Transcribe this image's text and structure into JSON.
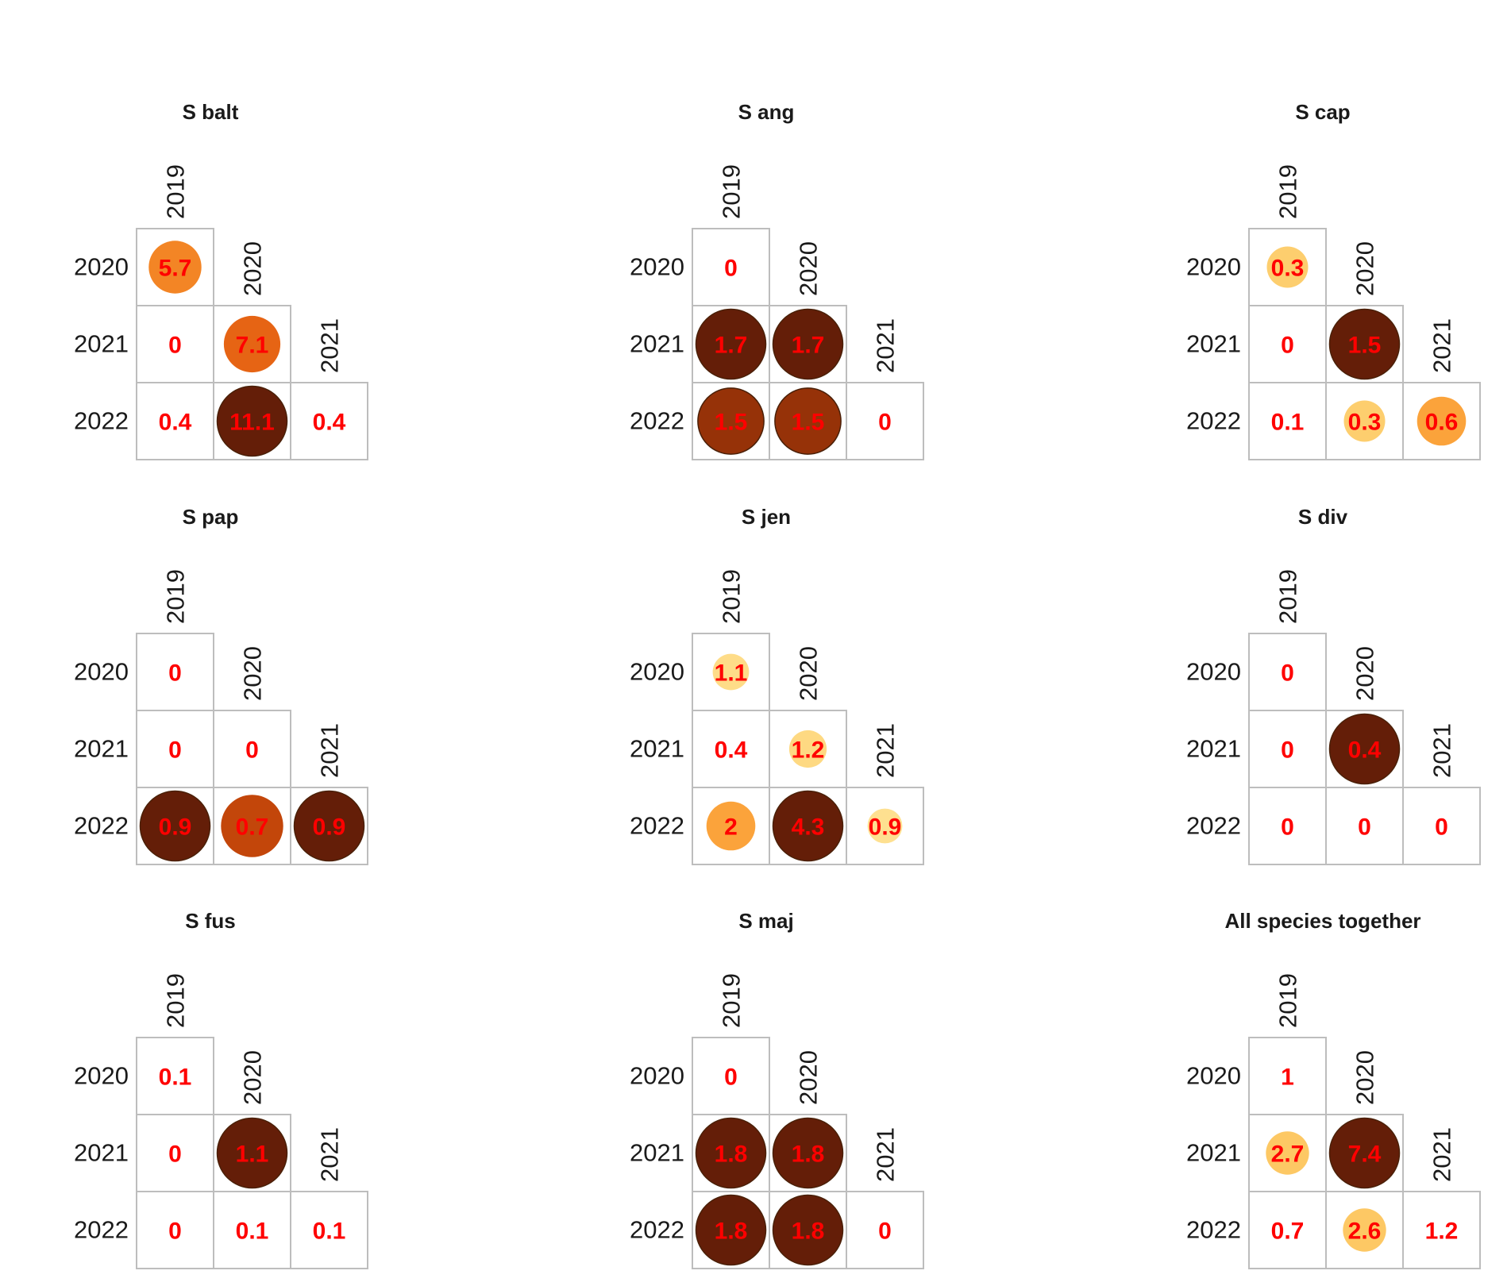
{
  "chart_data": [
    {
      "type": "heatmap",
      "title": "S balt",
      "rows": [
        "2020",
        "2021",
        "2022"
      ],
      "columns": [
        "2019",
        "2020",
        "2021"
      ],
      "values": [
        [
          5.7
        ],
        [
          0,
          7.1
        ],
        [
          0.4,
          11.1,
          0.4
        ]
      ],
      "circle_fill": [
        [
          0.55
        ],
        [
          null,
          0.65
        ],
        [
          null,
          1.0,
          null
        ]
      ]
    },
    {
      "type": "heatmap",
      "title": "S ang",
      "rows": [
        "2020",
        "2021",
        "2022"
      ],
      "columns": [
        "2019",
        "2020",
        "2021"
      ],
      "values": [
        [
          0
        ],
        [
          1.7,
          1.7
        ],
        [
          1.5,
          1.5,
          0
        ]
      ],
      "circle_fill": [
        [
          null
        ],
        [
          1.0,
          1.0
        ],
        [
          0.9,
          0.9,
          null
        ]
      ]
    },
    {
      "type": "heatmap",
      "title": "S cap",
      "rows": [
        "2020",
        "2021",
        "2022"
      ],
      "columns": [
        "2019",
        "2020",
        "2021"
      ],
      "values": [
        [
          0.3
        ],
        [
          0,
          1.5
        ],
        [
          0.1,
          0.3,
          0.6
        ]
      ],
      "circle_fill": [
        [
          0.25
        ],
        [
          null,
          1.0
        ],
        [
          null,
          0.25,
          0.45
        ]
      ]
    },
    {
      "type": "heatmap",
      "title": "S pap",
      "rows": [
        "2020",
        "2021",
        "2022"
      ],
      "columns": [
        "2019",
        "2020",
        "2021"
      ],
      "values": [
        [
          0
        ],
        [
          0,
          0
        ],
        [
          0.9,
          0.7,
          0.9
        ]
      ],
      "circle_fill": [
        [
          null
        ],
        [
          null,
          null
        ],
        [
          1.0,
          0.8,
          1.0
        ]
      ]
    },
    {
      "type": "heatmap",
      "title": "S jen",
      "rows": [
        "2020",
        "2021",
        "2022"
      ],
      "columns": [
        "2019",
        "2020",
        "2021"
      ],
      "values": [
        [
          1.1
        ],
        [
          0.4,
          1.2
        ],
        [
          2,
          4.3,
          0.9
        ]
      ],
      "circle_fill": [
        [
          0.12
        ],
        [
          null,
          0.15
        ],
        [
          0.45,
          1.0,
          0.08
        ]
      ]
    },
    {
      "type": "heatmap",
      "title": "S div",
      "rows": [
        "2020",
        "2021",
        "2022"
      ],
      "columns": [
        "2019",
        "2020",
        "2021"
      ],
      "values": [
        [
          0
        ],
        [
          0,
          0.4
        ],
        [
          0,
          0,
          0
        ]
      ],
      "circle_fill": [
        [
          null
        ],
        [
          null,
          1.0
        ],
        [
          null,
          null,
          null
        ]
      ]
    },
    {
      "type": "heatmap",
      "title": "S fus",
      "rows": [
        "2020",
        "2021",
        "2022"
      ],
      "columns": [
        "2019",
        "2020",
        "2021"
      ],
      "values": [
        [
          0.1
        ],
        [
          0,
          1.1
        ],
        [
          0,
          0.1,
          0.1
        ]
      ],
      "circle_fill": [
        [
          null
        ],
        [
          null,
          1.0
        ],
        [
          null,
          null,
          null
        ]
      ]
    },
    {
      "type": "heatmap",
      "title": "S maj",
      "rows": [
        "2020",
        "2021",
        "2022"
      ],
      "columns": [
        "2019",
        "2020",
        "2021"
      ],
      "values": [
        [
          0
        ],
        [
          1.8,
          1.8
        ],
        [
          1.8,
          1.8,
          0
        ]
      ],
      "circle_fill": [
        [
          null
        ],
        [
          1.0,
          1.0
        ],
        [
          1.0,
          1.0,
          null
        ]
      ]
    },
    {
      "type": "heatmap",
      "title": "All species together",
      "rows": [
        "2020",
        "2021",
        "2022"
      ],
      "columns": [
        "2019",
        "2020",
        "2021"
      ],
      "values": [
        [
          1
        ],
        [
          2.7,
          7.4
        ],
        [
          0.7,
          2.6,
          1.2
        ]
      ],
      "circle_fill": [
        [
          null
        ],
        [
          0.3,
          1.0
        ],
        [
          null,
          0.3,
          null
        ]
      ]
    }
  ]
}
